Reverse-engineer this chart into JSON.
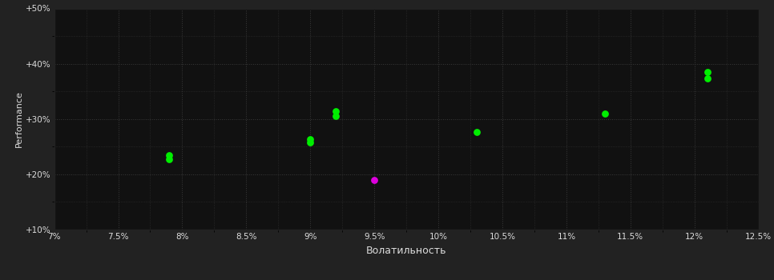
{
  "background_color": "#222222",
  "plot_bg_color": "#111111",
  "grid_color": "#3a3a3a",
  "text_color": "#dddddd",
  "xlabel": "Волатильность",
  "ylabel": "Performance",
  "xlim": [
    0.07,
    0.125
  ],
  "ylim": [
    0.1,
    0.5
  ],
  "xticks": [
    0.07,
    0.075,
    0.08,
    0.085,
    0.09,
    0.095,
    0.1,
    0.105,
    0.11,
    0.115,
    0.12,
    0.125
  ],
  "xtick_labels": [
    "7%",
    "7.5%",
    "8%",
    "8.5%",
    "9%",
    "9.5%",
    "10%",
    "10.5%",
    "11%",
    "11.5%",
    "12%",
    "12.5%"
  ],
  "yticks": [
    0.1,
    0.2,
    0.3,
    0.4,
    0.5
  ],
  "ytick_labels": [
    "+10%",
    "+20%",
    "+30%",
    "+40%",
    "+50%"
  ],
  "green_points": [
    [
      0.079,
      0.234
    ],
    [
      0.079,
      0.228
    ],
    [
      0.09,
      0.263
    ],
    [
      0.09,
      0.258
    ],
    [
      0.092,
      0.314
    ],
    [
      0.092,
      0.306
    ],
    [
      0.103,
      0.277
    ],
    [
      0.113,
      0.31
    ],
    [
      0.121,
      0.385
    ],
    [
      0.121,
      0.373
    ]
  ],
  "magenta_points": [
    [
      0.095,
      0.19
    ]
  ],
  "marker_size": 40,
  "green_color": "#00ee00",
  "magenta_color": "#dd00dd"
}
